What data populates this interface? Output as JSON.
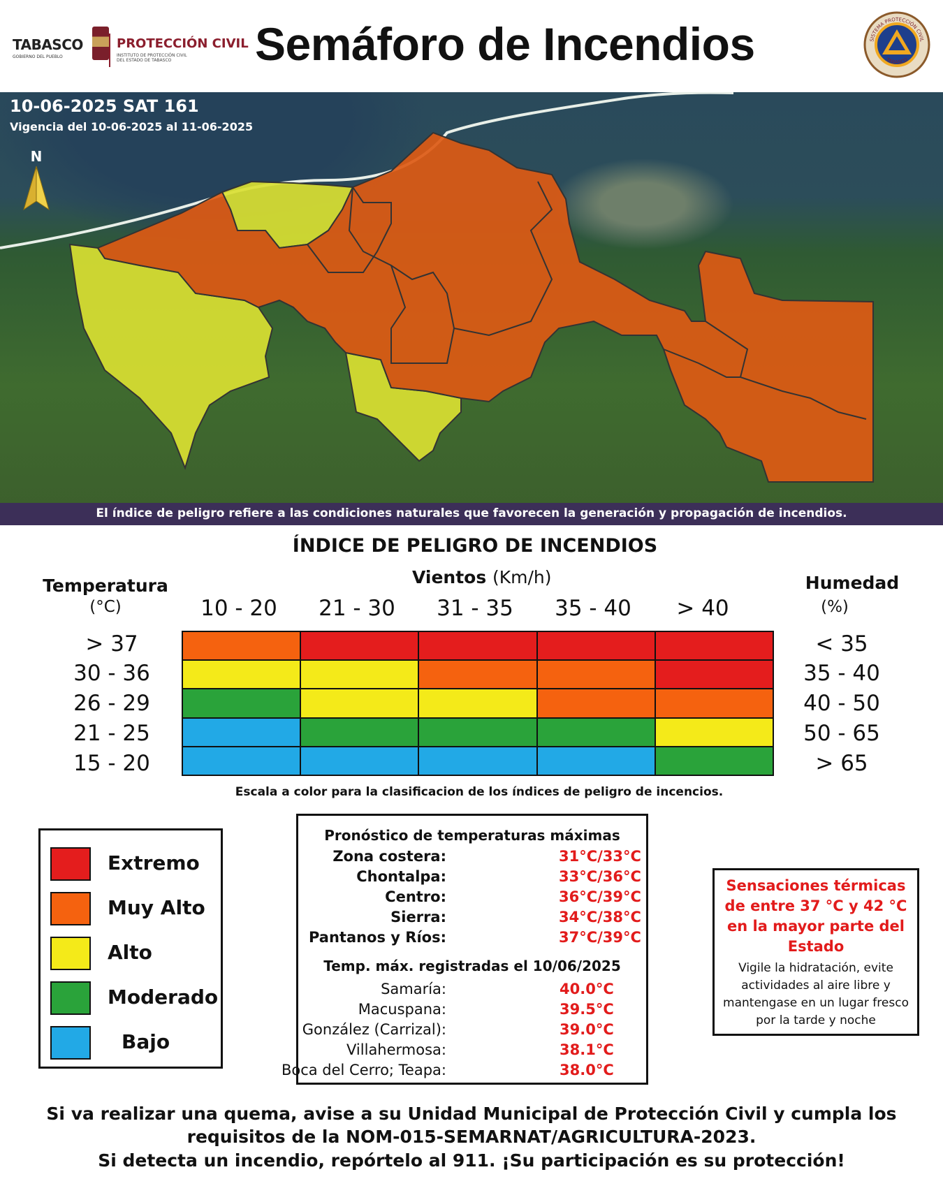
{
  "header": {
    "title": "Semáforo de Incendios",
    "logo_tabasco": "TABASCO",
    "logo_tabasco_sub": "GOBIERNO DEL PUEBLO",
    "logo_pc": "PROTECCIÓN CIVIL",
    "logo_pc_sub": "INSTITUTO DE PROTECCIÓN CIVIL DEL ESTADO DE TABASCO",
    "seal_top": "SISTEMA PROTECCIÓN CIVIL",
    "seal_bottom": "TABASCO"
  },
  "map": {
    "date": "10-06-2025 SAT 161",
    "vigencia": "Vigencia del 10-06-2025 al 11-06-2025",
    "north": "N",
    "note": "El índice de peligro refiere a las condiciones naturales que favorecen la generación y propagación de incendios.",
    "region_colors": {
      "muy_alto": "#dd5a14",
      "alto": "#d9e032"
    }
  },
  "index": {
    "title": "ÍNDICE DE PELIGRO DE INCENDIOS",
    "winds_label": "Vientos",
    "winds_unit": "(Km/h)",
    "temp_label": "Temperatura",
    "temp_unit": "(°C)",
    "hum_label": "Humedad",
    "hum_unit": "(%)",
    "wind_cols": [
      "10 - 20",
      "21 - 30",
      "31 - 35",
      "35 - 40",
      "> 40"
    ],
    "temp_rows": [
      "> 37",
      "30 - 36",
      "26 - 29",
      "21 - 25",
      "15 - 20"
    ],
    "hum_rows": [
      "< 35",
      "35 - 40",
      "40 - 50",
      "50 - 65",
      "> 65"
    ],
    "grid_levels": [
      [
        "muy_alto",
        "extremo",
        "extremo",
        "extremo",
        "extremo"
      ],
      [
        "alto",
        "alto",
        "muy_alto",
        "muy_alto",
        "extremo"
      ],
      [
        "moderado",
        "alto",
        "alto",
        "muy_alto",
        "muy_alto"
      ],
      [
        "bajo",
        "moderado",
        "moderado",
        "moderado",
        "alto"
      ],
      [
        "bajo",
        "bajo",
        "bajo",
        "bajo",
        "moderado"
      ]
    ],
    "level_colors": {
      "extremo": "#e41d1d",
      "muy_alto": "#f5620f",
      "alto": "#f4ea19",
      "moderado": "#2aa33a",
      "bajo": "#22a9e6"
    },
    "caption": "Escala a color para la clasificacion de los índices de peligro de incencios."
  },
  "legend": {
    "items": [
      {
        "key": "extremo",
        "label": "Extremo"
      },
      {
        "key": "muy_alto",
        "label": "Muy Alto"
      },
      {
        "key": "alto",
        "label": "Alto"
      },
      {
        "key": "moderado",
        "label": "Moderado"
      },
      {
        "key": "bajo",
        "label": "Bajo"
      }
    ]
  },
  "forecast": {
    "title": "Pronóstico de temperaturas máximas",
    "zones": [
      {
        "name": "Zona costera:",
        "value": "31°C/33°C"
      },
      {
        "name": "Chontalpa:",
        "value": "33°C/36°C"
      },
      {
        "name": "Centro:",
        "value": "36°C/39°C"
      },
      {
        "name": "Sierra:",
        "value": "34°C/38°C"
      },
      {
        "name": "Pantanos y Ríos:",
        "value": "37°C/39°C"
      }
    ],
    "recorded_title": "Temp. máx. registradas el 10/06/2025",
    "recorded": [
      {
        "name": "Samaría:",
        "value": "40.0°C"
      },
      {
        "name": "Macuspana:",
        "value": "39.5°C"
      },
      {
        "name": "González (Carrizal):",
        "value": "39.0°C"
      },
      {
        "name": "Villahermosa:",
        "value": "38.1°C"
      },
      {
        "name": "Boca del Cerro; Teapa:",
        "value": "38.0°C"
      }
    ]
  },
  "heat": {
    "title": "Sensaciones térmicas de entre 37 °C y 42 °C en la mayor parte del Estado",
    "body": "Vigile la hidratación, evite actividades al aire libre y mantengase en un lugar fresco por la tarde y noche"
  },
  "footer": {
    "line1": "Si va realizar una quema, avise a su Unidad Municipal de Protección Civil y cumpla los",
    "line2": "requisitos de la NOM-015-SEMARNAT/AGRICULTURA-2023.",
    "line3": "Si detecta un incendio, repórtelo al 911. ¡Su participación es su protección!"
  }
}
